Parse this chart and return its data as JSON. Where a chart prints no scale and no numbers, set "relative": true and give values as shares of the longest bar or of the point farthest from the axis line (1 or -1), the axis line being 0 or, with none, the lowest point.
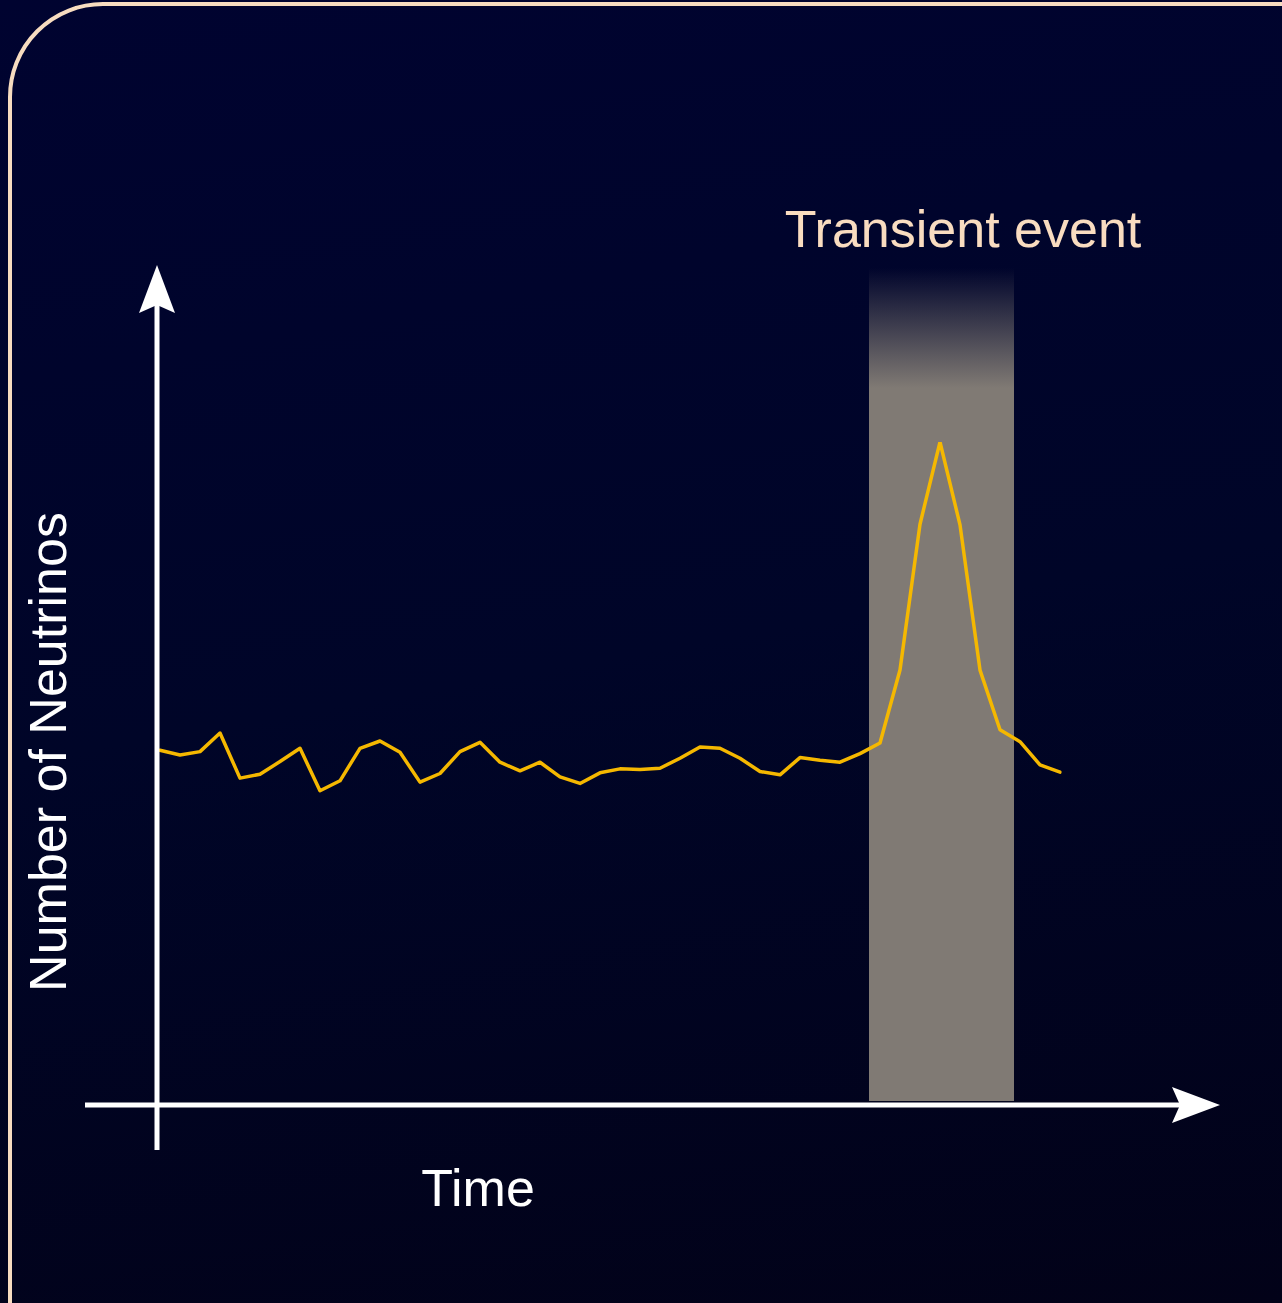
{
  "chart_data": {
    "type": "line",
    "relative": true,
    "xlabel": "Time",
    "ylabel": "Number of Neutrinos",
    "legend": false,
    "marker": "none",
    "line_style": "solid",
    "categories": [
      null,
      null,
      null,
      null,
      null,
      null,
      null,
      null,
      null,
      null,
      null,
      null,
      null,
      null,
      null,
      null,
      null,
      null,
      null,
      null,
      null,
      null,
      null,
      null,
      null,
      null,
      null,
      null,
      null,
      null,
      null,
      null,
      null,
      null,
      null,
      null,
      null,
      null,
      null,
      null,
      null,
      null,
      null,
      null,
      null,
      null
    ],
    "values": [
      0.535,
      0.528,
      0.533,
      0.561,
      0.493,
      0.499,
      0.518,
      0.538,
      0.474,
      0.489,
      0.538,
      0.549,
      0.532,
      0.487,
      0.5,
      0.533,
      0.547,
      0.517,
      0.504,
      0.517,
      0.495,
      0.485,
      0.501,
      0.507,
      0.506,
      0.508,
      0.523,
      0.54,
      0.538,
      0.523,
      0.503,
      0.498,
      0.524,
      0.52,
      0.517,
      0.53,
      0.546,
      0.656,
      0.876,
      1,
      0.875,
      0.656,
      0.566,
      0.548,
      0.513,
      0.502
    ],
    "color": "#f5b800",
    "annotations": [
      "Transient event"
    ]
  }
}
